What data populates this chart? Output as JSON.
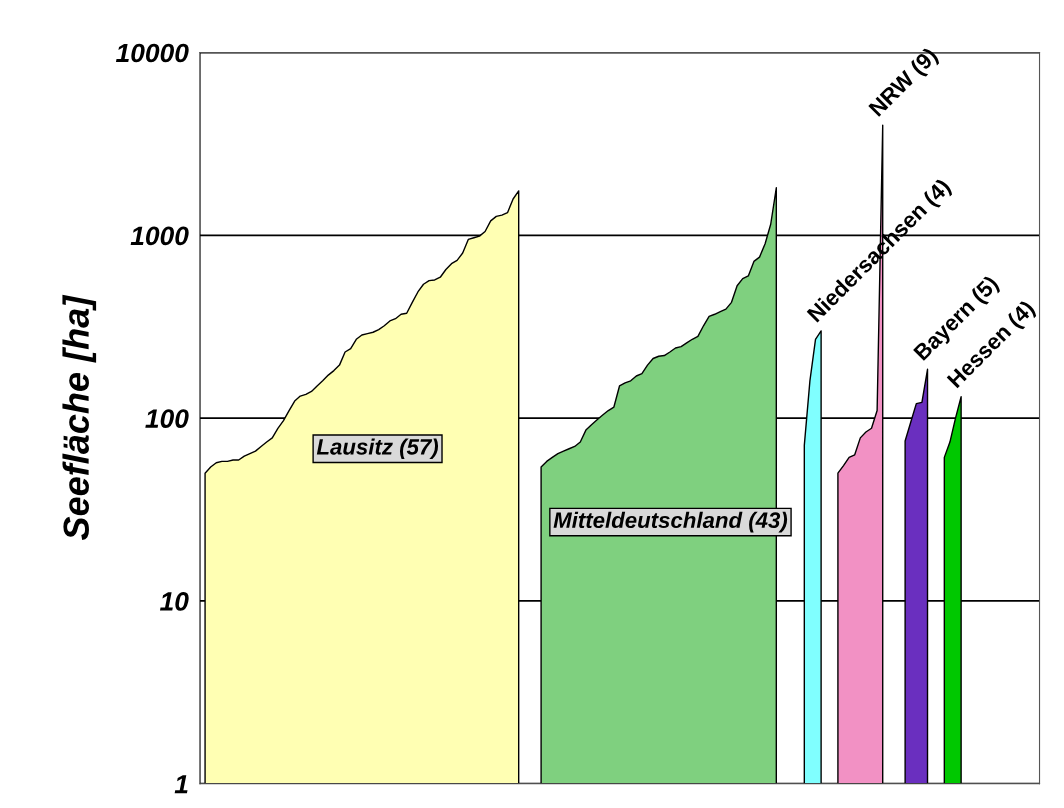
{
  "chart_data": {
    "type": "area",
    "ylabel": "Seefläche [ha]",
    "log": "y",
    "ylim": [
      1,
      10000
    ],
    "yticks": [
      1,
      10,
      100,
      1000,
      10000
    ],
    "grid": "y",
    "tick_labels": "y",
    "categories": [
      null,
      null,
      null,
      null,
      null,
      null,
      null,
      null,
      null,
      null,
      null,
      null,
      null,
      null,
      null,
      null,
      null,
      null,
      null,
      null,
      null,
      null,
      null,
      null,
      null,
      null,
      null,
      null,
      null,
      null,
      null,
      null,
      null,
      null,
      null,
      null,
      null,
      null,
      null,
      null,
      null,
      null,
      null,
      null,
      null,
      null,
      null,
      null,
      null,
      null,
      null,
      null,
      null,
      null,
      null,
      null,
      null,
      null,
      null,
      null,
      null,
      null,
      null,
      null,
      null,
      null,
      null,
      null,
      null,
      null,
      null,
      null,
      null,
      null,
      null,
      null,
      null,
      null,
      null,
      null,
      null,
      null,
      null,
      null,
      null,
      null,
      null,
      null,
      null,
      null,
      null,
      null,
      null,
      null,
      null,
      null,
      null,
      null,
      null,
      null,
      null,
      null,
      null,
      null,
      null,
      null,
      null,
      null,
      null,
      null,
      null,
      null,
      null,
      null,
      null,
      null,
      null,
      null,
      null,
      null,
      null,
      null,
      null,
      null,
      null,
      null,
      null,
      null,
      null,
      null,
      null,
      null,
      null,
      null,
      null,
      null,
      null,
      null,
      null,
      null,
      null,
      null,
      null,
      null,
      null,
      null,
      null,
      null,
      null,
      null
    ],
    "series": [
      {
        "name": "Lausitz (57)",
        "color": "#ffffb3",
        "values": [
          50,
          54,
          57,
          58,
          58,
          59,
          59,
          62,
          64,
          66,
          70,
          74,
          78,
          88,
          97,
          110,
          124,
          132,
          135,
          140,
          150,
          160,
          172,
          182,
          195,
          230,
          240,
          270,
          285,
          290,
          295,
          305,
          320,
          340,
          350,
          370,
          375,
          430,
          490,
          540,
          565,
          570,
          590,
          650,
          700,
          730,
          800,
          950,
          970,
          990,
          1050,
          1200,
          1270,
          1290,
          1330,
          1580,
          1750,
          null,
          null,
          null,
          null,
          null,
          null,
          null,
          null,
          null,
          null,
          null,
          null,
          null,
          null,
          null,
          null,
          null,
          null,
          null,
          null,
          null,
          null,
          null,
          null,
          null,
          null,
          null,
          null,
          null,
          null,
          null,
          null,
          null,
          null,
          null,
          null,
          null,
          null,
          null,
          null,
          null,
          null,
          null,
          null,
          null,
          null,
          null,
          null,
          null,
          null,
          null,
          null,
          null,
          null,
          null,
          null,
          null,
          null,
          null,
          null,
          null,
          null,
          null,
          null,
          null,
          null,
          null,
          null,
          null,
          null,
          null,
          null,
          null,
          null,
          null,
          null,
          null,
          null,
          null,
          null,
          null,
          null,
          null,
          null,
          null,
          null,
          null,
          null,
          null,
          null,
          null,
          null,
          null
        ]
      },
      {
        "name": "Mitteldeutschland (43)",
        "color": "#7fd07f",
        "values": [
          null,
          null,
          null,
          null,
          null,
          null,
          null,
          null,
          null,
          null,
          null,
          null,
          null,
          null,
          null,
          null,
          null,
          null,
          null,
          null,
          null,
          null,
          null,
          null,
          null,
          null,
          null,
          null,
          null,
          null,
          null,
          null,
          null,
          null,
          null,
          null,
          null,
          null,
          null,
          null,
          null,
          null,
          null,
          null,
          null,
          null,
          null,
          null,
          null,
          null,
          null,
          null,
          null,
          null,
          null,
          null,
          null,
          null,
          null,
          null,
          54,
          58,
          61,
          64,
          66,
          68,
          70,
          74,
          86,
          92,
          98,
          104,
          110,
          115,
          150,
          156,
          160,
          170,
          175,
          195,
          212,
          218,
          220,
          230,
          242,
          246,
          258,
          270,
          280,
          320,
          360,
          370,
          382,
          395,
          430,
          530,
          580,
          600,
          720,
          760,
          900,
          1150,
          1820,
          null,
          null,
          null,
          null,
          null,
          null,
          null,
          null,
          null,
          null,
          null,
          null,
          null,
          null,
          null,
          null,
          null,
          null,
          null,
          null,
          null,
          null,
          null,
          null,
          null,
          null,
          null,
          null,
          null,
          null,
          null,
          null,
          null,
          null,
          null,
          null,
          null,
          null,
          null,
          null,
          null,
          null,
          null,
          null,
          null,
          null,
          null
        ]
      },
      {
        "name": "Niedersachsen (4)",
        "color": "#80ffff",
        "values": [
          null,
          null,
          null,
          null,
          null,
          null,
          null,
          null,
          null,
          null,
          null,
          null,
          null,
          null,
          null,
          null,
          null,
          null,
          null,
          null,
          null,
          null,
          null,
          null,
          null,
          null,
          null,
          null,
          null,
          null,
          null,
          null,
          null,
          null,
          null,
          null,
          null,
          null,
          null,
          null,
          null,
          null,
          null,
          null,
          null,
          null,
          null,
          null,
          null,
          null,
          null,
          null,
          null,
          null,
          null,
          null,
          null,
          null,
          null,
          null,
          null,
          null,
          null,
          null,
          null,
          null,
          null,
          null,
          null,
          null,
          null,
          null,
          null,
          null,
          null,
          null,
          null,
          null,
          null,
          null,
          null,
          null,
          null,
          null,
          null,
          null,
          null,
          null,
          null,
          null,
          null,
          null,
          null,
          null,
          null,
          null,
          null,
          null,
          null,
          null,
          null,
          null,
          null,
          null,
          null,
          null,
          null,
          71,
          160,
          270,
          300,
          null,
          null,
          null,
          null,
          null,
          null,
          null,
          null,
          null,
          null,
          null,
          null,
          null,
          null,
          null,
          null,
          null,
          null,
          null,
          null,
          null,
          null,
          null,
          null,
          null,
          null,
          null,
          null,
          null,
          null,
          null,
          null,
          null,
          null,
          null,
          null,
          null,
          null,
          null
        ]
      },
      {
        "name": "NRW (9)",
        "color": "#f291c4",
        "values": [
          null,
          null,
          null,
          null,
          null,
          null,
          null,
          null,
          null,
          null,
          null,
          null,
          null,
          null,
          null,
          null,
          null,
          null,
          null,
          null,
          null,
          null,
          null,
          null,
          null,
          null,
          null,
          null,
          null,
          null,
          null,
          null,
          null,
          null,
          null,
          null,
          null,
          null,
          null,
          null,
          null,
          null,
          null,
          null,
          null,
          null,
          null,
          null,
          null,
          null,
          null,
          null,
          null,
          null,
          null,
          null,
          null,
          null,
          null,
          null,
          null,
          null,
          null,
          null,
          null,
          null,
          null,
          null,
          null,
          null,
          null,
          null,
          null,
          null,
          null,
          null,
          null,
          null,
          null,
          null,
          null,
          null,
          null,
          null,
          null,
          null,
          null,
          null,
          null,
          null,
          null,
          null,
          null,
          null,
          null,
          null,
          null,
          null,
          null,
          null,
          null,
          null,
          null,
          null,
          null,
          null,
          null,
          null,
          null,
          null,
          null,
          null,
          null,
          50,
          55,
          61,
          63,
          78,
          84,
          88,
          110,
          4000,
          null,
          null,
          null,
          null,
          null,
          null,
          null,
          null,
          null,
          null,
          null,
          null,
          null,
          null,
          null,
          null,
          null,
          null,
          null,
          null,
          null,
          null,
          null,
          null,
          null,
          null,
          null,
          null
        ]
      },
      {
        "name": "Bayern (5)",
        "color": "#6a2fbf",
        "values": [
          null,
          null,
          null,
          null,
          null,
          null,
          null,
          null,
          null,
          null,
          null,
          null,
          null,
          null,
          null,
          null,
          null,
          null,
          null,
          null,
          null,
          null,
          null,
          null,
          null,
          null,
          null,
          null,
          null,
          null,
          null,
          null,
          null,
          null,
          null,
          null,
          null,
          null,
          null,
          null,
          null,
          null,
          null,
          null,
          null,
          null,
          null,
          null,
          null,
          null,
          null,
          null,
          null,
          null,
          null,
          null,
          null,
          null,
          null,
          null,
          null,
          null,
          null,
          null,
          null,
          null,
          null,
          null,
          null,
          null,
          null,
          null,
          null,
          null,
          null,
          null,
          null,
          null,
          null,
          null,
          null,
          null,
          null,
          null,
          null,
          null,
          null,
          null,
          null,
          null,
          null,
          null,
          null,
          null,
          null,
          null,
          null,
          null,
          null,
          null,
          null,
          null,
          null,
          null,
          null,
          null,
          null,
          null,
          null,
          null,
          null,
          null,
          null,
          null,
          null,
          null,
          null,
          null,
          null,
          null,
          null,
          null,
          null,
          null,
          null,
          75,
          95,
          120,
          122,
          185,
          null,
          null,
          null,
          null,
          null,
          null,
          null,
          null,
          null,
          null,
          null,
          null,
          null,
          null,
          null,
          null,
          null,
          null,
          null,
          null
        ]
      },
      {
        "name": "Hessen (4)",
        "color": "#00c800",
        "values": [
          null,
          null,
          null,
          null,
          null,
          null,
          null,
          null,
          null,
          null,
          null,
          null,
          null,
          null,
          null,
          null,
          null,
          null,
          null,
          null,
          null,
          null,
          null,
          null,
          null,
          null,
          null,
          null,
          null,
          null,
          null,
          null,
          null,
          null,
          null,
          null,
          null,
          null,
          null,
          null,
          null,
          null,
          null,
          null,
          null,
          null,
          null,
          null,
          null,
          null,
          null,
          null,
          null,
          null,
          null,
          null,
          null,
          null,
          null,
          null,
          null,
          null,
          null,
          null,
          null,
          null,
          null,
          null,
          null,
          null,
          null,
          null,
          null,
          null,
          null,
          null,
          null,
          null,
          null,
          null,
          null,
          null,
          null,
          null,
          null,
          null,
          null,
          null,
          null,
          null,
          null,
          null,
          null,
          null,
          null,
          null,
          null,
          null,
          null,
          null,
          null,
          null,
          null,
          null,
          null,
          null,
          null,
          null,
          null,
          null,
          null,
          null,
          null,
          null,
          null,
          null,
          null,
          null,
          null,
          null,
          null,
          null,
          null,
          null,
          null,
          null,
          null,
          null,
          null,
          null,
          null,
          null,
          61,
          74,
          100,
          131,
          null,
          null,
          null,
          null,
          null,
          null,
          null,
          null,
          null,
          null,
          null,
          null,
          null,
          null
        ]
      }
    ]
  }
}
